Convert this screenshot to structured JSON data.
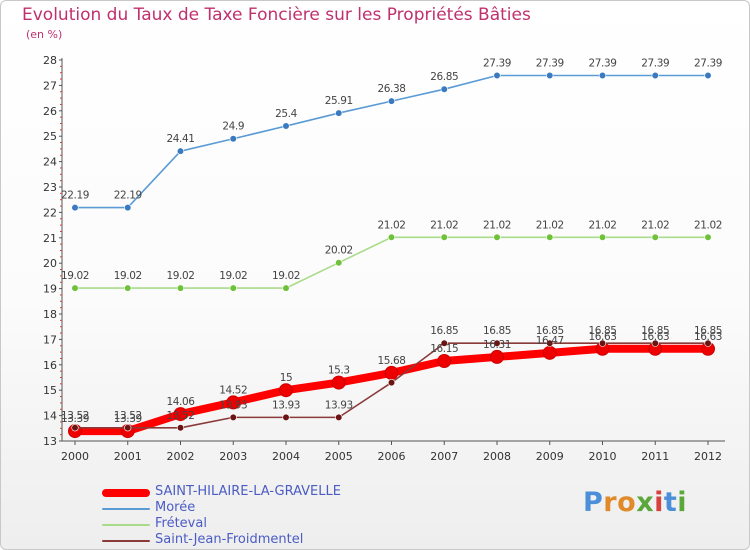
{
  "chart_data": {
    "type": "line",
    "title": "Evolution du Taux de Taxe Foncière sur les Propriétés Bâties",
    "subtitle": "(en %)",
    "xlabel": "",
    "ylabel": "",
    "ylim": [
      13,
      28
    ],
    "yticks": [
      "13",
      "14",
      "15",
      "16",
      "17",
      "18",
      "19",
      "20",
      "21",
      "22",
      "23",
      "24",
      "25",
      "26",
      "27",
      "28"
    ],
    "categories": [
      "2000",
      "2001",
      "2002",
      "2003",
      "2004",
      "2005",
      "2006",
      "2007",
      "2008",
      "2009",
      "2010",
      "2011",
      "2012"
    ],
    "grid": false,
    "legend_position": "bottom-left",
    "series": [
      {
        "name": "Morée",
        "color": "#5b9bd5",
        "marker": "#3a7abf",
        "values": [
          22.19,
          22.19,
          24.41,
          24.9,
          25.4,
          25.91,
          26.38,
          26.85,
          27.39,
          27.39,
          27.39,
          27.39,
          27.39
        ],
        "labels": [
          "22.19",
          "22.19",
          "24.41",
          "24.9",
          "25.4",
          "25.91",
          "26.38",
          "26.85",
          "27.39",
          "27.39",
          "27.39",
          "27.39",
          "27.39"
        ]
      },
      {
        "name": "Fréteval",
        "color": "#a8dc8a",
        "marker": "#6fc13a",
        "values": [
          19.02,
          19.02,
          19.02,
          19.02,
          19.02,
          20.02,
          21.02,
          21.02,
          21.02,
          21.02,
          21.02,
          21.02,
          21.02
        ],
        "labels": [
          "19.02",
          "19.02",
          "19.02",
          "19.02",
          "19.02",
          "20.02",
          "21.02",
          "21.02",
          "21.02",
          "21.02",
          "21.02",
          "21.02",
          "21.02"
        ]
      },
      {
        "name": "SAINT-HILAIRE-LA-GRAVELLE",
        "color": "#ff0000",
        "marker": "#ee0000",
        "values": [
          13.39,
          13.39,
          14.06,
          14.52,
          15,
          15.3,
          15.68,
          16.15,
          16.31,
          16.47,
          16.63,
          16.63,
          16.63
        ],
        "labels": [
          "13.39",
          "13.39",
          "14.06",
          "14.52",
          "15",
          "15.3",
          "15.68",
          "16.15",
          "16.31",
          "16.47",
          "16.63",
          "16.63",
          "16.63"
        ]
      },
      {
        "name": "Saint-Jean-Froidmentel",
        "color": "#8b3a3a",
        "marker": "#6b1414",
        "values": [
          13.52,
          13.52,
          13.52,
          13.93,
          13.93,
          13.93,
          15.3,
          16.85,
          16.85,
          16.85,
          16.85,
          16.85,
          16.85
        ],
        "labels": [
          "13.52",
          "13.52",
          "13.52",
          "13.93",
          "13.93",
          "13.93",
          "",
          "16.85",
          "16.85",
          "16.85",
          "16.85",
          "16.85",
          "16.85"
        ]
      }
    ]
  },
  "legend": [
    {
      "label": "SAINT-HILAIRE-LA-GRAVELLE",
      "color": "#ff0000"
    },
    {
      "label": "Morée",
      "color": "#5b9bd5"
    },
    {
      "label": "Fréteval",
      "color": "#a8dc8a"
    },
    {
      "label": "Saint-Jean-Froidmentel",
      "color": "#8b3a3a"
    }
  ],
  "logo": {
    "text": "Proxiti",
    "colors": [
      "#4a8fd8",
      "#e08a2a",
      "#e08a2a",
      "#5aa83a",
      "#d84040",
      "#4a8fd8",
      "#5aa83a"
    ]
  }
}
